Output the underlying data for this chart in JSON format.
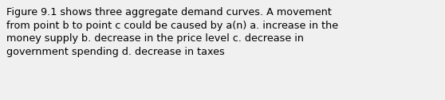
{
  "text": "Figure 9.1 shows three aggregate demand curves. A movement\nfrom point b to point c could be caused by a(n) a. increase in the\nmoney supply b. decrease in the price level c. decrease in\ngovernment spending d. decrease in taxes",
  "background_color": "#f0f0f0",
  "text_color": "#000000",
  "font_size": 9.2,
  "fig_width": 5.58,
  "fig_height": 1.26,
  "dpi": 100
}
